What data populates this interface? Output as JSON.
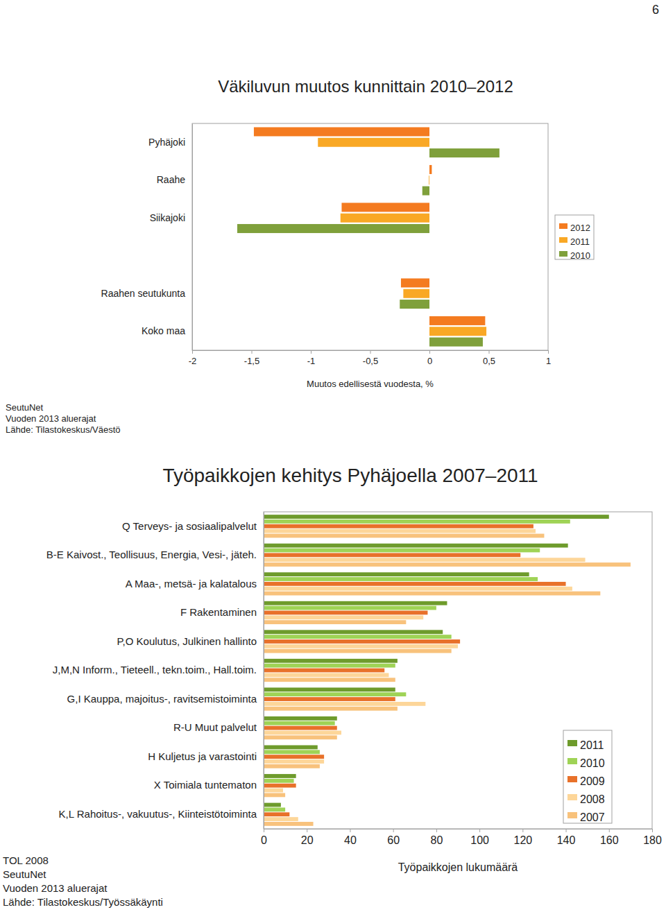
{
  "page_number": "6",
  "chart_data": [
    {
      "type": "bar",
      "orientation": "horizontal",
      "title": "Väkiluvun muutos kunnittain 2010–2012",
      "x_label": "Muutos edellisestä vuodesta, %",
      "categories": [
        "Pyhäjoki",
        "Raahe",
        "Siikajoki",
        null,
        "Raahen seutukunta",
        "Koko maa"
      ],
      "series": [
        {
          "name": "2012",
          "color": "#f47b20",
          "values": [
            -1.48,
            0.02,
            -0.74,
            null,
            -0.24,
            0.47
          ]
        },
        {
          "name": "2011",
          "color": "#f9a825",
          "values": [
            -0.94,
            -0.005,
            -0.75,
            null,
            -0.22,
            0.48
          ]
        },
        {
          "name": "2010",
          "color": "#7fa03b",
          "values": [
            0.59,
            -0.06,
            -1.62,
            null,
            -0.25,
            0.45
          ]
        }
      ],
      "xlim": [
        -2,
        1
      ],
      "xticks": [
        -2,
        {
          "value": -1.5,
          "label": "-1,5"
        },
        -1,
        {
          "value": -0.5,
          "label": "-0,5"
        },
        0,
        {
          "value": 0.5,
          "label": "0,5"
        },
        1
      ],
      "legend": "right",
      "grid": false,
      "annotations": [
        "SeutuNet",
        "Vuoden 2013 aluerajat",
        "Lähde: Tilastokeskus/Väestö"
      ]
    },
    {
      "type": "bar",
      "orientation": "horizontal",
      "title": "Työpaikkojen kehitys Pyhäjoella 2007–2011",
      "x_label": "Työpaikkojen lukumäärä",
      "categories": [
        "Q Terveys- ja sosiaalipalvelut",
        "B-E Kaivost., Teollisuus, Energia, Vesi-, jäteh.",
        "A Maa-, metsä- ja kalatalous",
        "F Rakentaminen",
        "P,O Koulutus, Julkinen hallinto",
        "J,M,N Inform., Tieteell., tekn.toim., Hall.toim.",
        "G,I Kauppa, majoitus-, ravitsemistoiminta",
        "R-U Muut palvelut",
        "H Kuljetus ja varastointi",
        "X Toimiala tuntematon",
        "K,L Rahoitus-, vakuutus-, Kiinteistötoiminta"
      ],
      "series": [
        {
          "name": "2011",
          "color": "#6e9b2c",
          "values": [
            160,
            141,
            123,
            85,
            83,
            62,
            61,
            34,
            25,
            15,
            8
          ]
        },
        {
          "name": "2010",
          "color": "#9fd356",
          "values": [
            142,
            128,
            127,
            80,
            87,
            61,
            66,
            33,
            26,
            14,
            10
          ]
        },
        {
          "name": "2009",
          "color": "#e8712a",
          "values": [
            125,
            119,
            140,
            76,
            91,
            56,
            61,
            34,
            28,
            15,
            12
          ]
        },
        {
          "name": "2008",
          "color": "#fdd699",
          "values": [
            126,
            149,
            143,
            74,
            90,
            58,
            75,
            36,
            28,
            9,
            16
          ]
        },
        {
          "name": "2007",
          "color": "#f8c27c",
          "values": [
            130,
            170,
            156,
            66,
            87,
            61,
            62,
            34,
            26,
            10,
            23
          ]
        }
      ],
      "xlim": [
        0,
        180
      ],
      "xticks": [
        0,
        20,
        40,
        60,
        80,
        100,
        120,
        140,
        160,
        180
      ],
      "legend": "right",
      "grid": false,
      "annotations": [
        "TOL 2008",
        "SeutuNet",
        "Vuoden 2013 aluerajat",
        "Lähde: Tilastokeskus/Työssäkäynti"
      ]
    }
  ]
}
